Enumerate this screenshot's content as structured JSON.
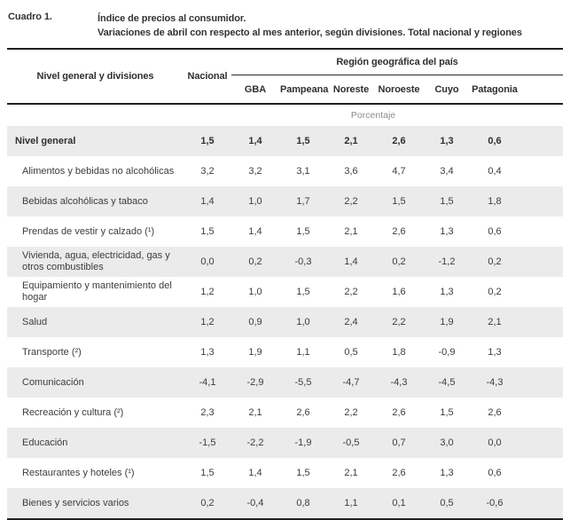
{
  "caption": {
    "label": "Cuadro 1.",
    "line1": "Índice de precios al consumidor.",
    "line2": "Variaciones de abril con respecto al mes anterior, según divisiones. Total nacional y regiones"
  },
  "table": {
    "col_group_label": "Región geográfica del país",
    "header": {
      "division_col": "Nivel general y divisiones",
      "national_col": "Nacional",
      "region_cols": [
        "GBA",
        "Pampeana",
        "Noreste",
        "Noroeste",
        "Cuyo",
        "Patagonia"
      ]
    },
    "unit_label": "Porcentaje",
    "rows": [
      {
        "label": "Nivel general",
        "bold": true,
        "values": [
          "1,5",
          "1,4",
          "1,5",
          "2,1",
          "2,6",
          "1,3",
          "0,6"
        ]
      },
      {
        "label": "Alimentos y bebidas no alcohólicas",
        "bold": false,
        "values": [
          "3,2",
          "3,2",
          "3,1",
          "3,6",
          "4,7",
          "3,4",
          "0,4"
        ]
      },
      {
        "label": "Bebidas alcohólicas y tabaco",
        "bold": false,
        "values": [
          "1,4",
          "1,0",
          "1,7",
          "2,2",
          "1,5",
          "1,5",
          "1,8"
        ]
      },
      {
        "label": "Prendas de vestir y calzado (¹)",
        "bold": false,
        "values": [
          "1,5",
          "1,4",
          "1,5",
          "2,1",
          "2,6",
          "1,3",
          "0,6"
        ]
      },
      {
        "label": "Vivienda, agua, electricidad, gas y otros combustibles",
        "bold": false,
        "values": [
          "0,0",
          "0,2",
          "-0,3",
          "1,4",
          "0,2",
          "-1,2",
          "0,2"
        ]
      },
      {
        "label": "Equipamiento y mantenimiento del hogar",
        "bold": false,
        "values": [
          "1,2",
          "1,0",
          "1,5",
          "2,2",
          "1,6",
          "1,3",
          "0,2"
        ]
      },
      {
        "label": "Salud",
        "bold": false,
        "values": [
          "1,2",
          "0,9",
          "1,0",
          "2,4",
          "2,2",
          "1,9",
          "2,1"
        ]
      },
      {
        "label": "Transporte (²)",
        "bold": false,
        "values": [
          "1,3",
          "1,9",
          "1,1",
          "0,5",
          "1,8",
          "-0,9",
          "1,3"
        ]
      },
      {
        "label": "Comunicación",
        "bold": false,
        "values": [
          "-4,1",
          "-2,9",
          "-5,5",
          "-4,7",
          "-4,3",
          "-4,5",
          "-4,3"
        ]
      },
      {
        "label": "Recreación y cultura (²)",
        "bold": false,
        "values": [
          "2,3",
          "2,1",
          "2,6",
          "2,2",
          "2,6",
          "1,5",
          "2,6"
        ]
      },
      {
        "label": "Educación",
        "bold": false,
        "values": [
          "-1,5",
          "-2,2",
          "-1,9",
          "-0,5",
          "0,7",
          "3,0",
          "0,0"
        ]
      },
      {
        "label": "Restaurantes y hoteles (¹)",
        "bold": false,
        "values": [
          "1,5",
          "1,4",
          "1,5",
          "2,1",
          "2,6",
          "1,3",
          "0,6"
        ]
      },
      {
        "label": "Bienes y servicios varios",
        "bold": false,
        "values": [
          "0,2",
          "-0,4",
          "0,8",
          "1,1",
          "0,1",
          "0,5",
          "-0,6"
        ]
      }
    ]
  },
  "colors": {
    "text": "#3c3c3c",
    "heading_text": "#2f2f2f",
    "unit_text": "#8c8c8c",
    "row_shade": "#ebebeb",
    "rule": "#202020",
    "background": "#ffffff"
  }
}
